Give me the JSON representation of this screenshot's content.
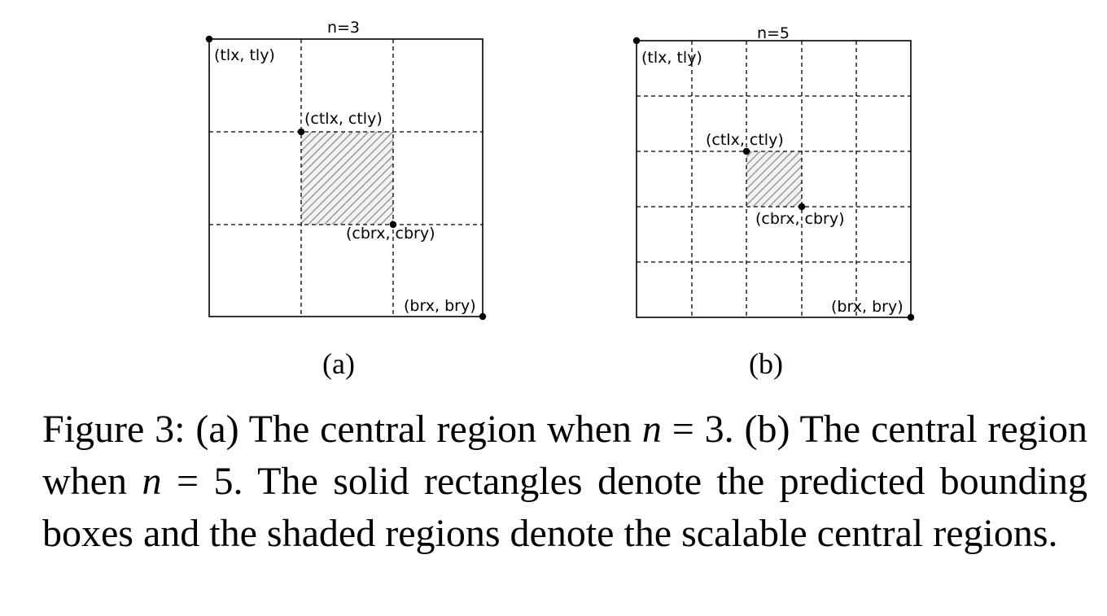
{
  "figure": {
    "panels": [
      {
        "id": "a",
        "title": "n=3",
        "grid_n": 3,
        "central_cells": [
          1,
          1
        ],
        "labels": {
          "top_left": "(tlx, tly)",
          "central_top_left": "(ctlx, ctly)",
          "central_bottom_right": "(cbrx, cbry)",
          "bottom_right": "(brx, bry)"
        },
        "sublabel": "(a)"
      },
      {
        "id": "b",
        "title": "n=5",
        "grid_n": 5,
        "central_cells": [
          2,
          2
        ],
        "labels": {
          "top_left": "(tlx, tly)",
          "central_top_left": "(ctlx, ctly)",
          "central_bottom_right": "(cbrx, cbry)",
          "bottom_right": "(brx, bry)"
        },
        "sublabel": "(b)"
      }
    ]
  },
  "caption": {
    "label": "Figure 3:",
    "part1": "(a) The central region when",
    "math_var": "n",
    "eq1": "= 3.",
    "part2": "(b) The central region when",
    "eq2": "= 5.",
    "part3": "The solid rectangles denote the predicted bounding boxes and the shaded regions denote the scalable central regions."
  }
}
